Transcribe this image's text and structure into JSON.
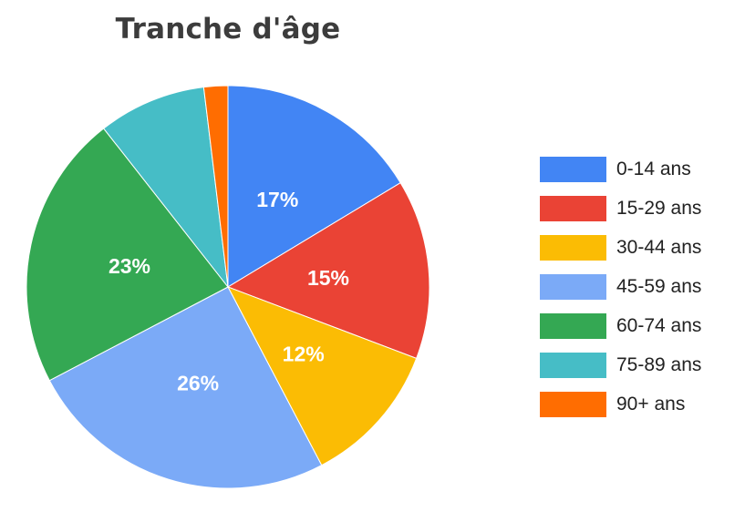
{
  "chart_data": {
    "type": "pie",
    "title": "Tranche d'âge",
    "categories": [
      "0-14 ans",
      "15-29 ans",
      "30-44 ans",
      "45-59 ans",
      "60-74 ans",
      "75-89 ans",
      "90+ ans"
    ],
    "values": [
      17,
      15,
      12,
      26,
      23,
      9,
      2
    ],
    "data_labels": [
      "17%",
      "15%",
      "12%",
      "26%",
      "23%",
      "",
      ""
    ],
    "colors": [
      "#4285F4",
      "#EA4335",
      "#FBBC04",
      "#7BAAF7",
      "#34A853",
      "#46BDC6",
      "#FF6D01"
    ],
    "legend_position": "right"
  }
}
